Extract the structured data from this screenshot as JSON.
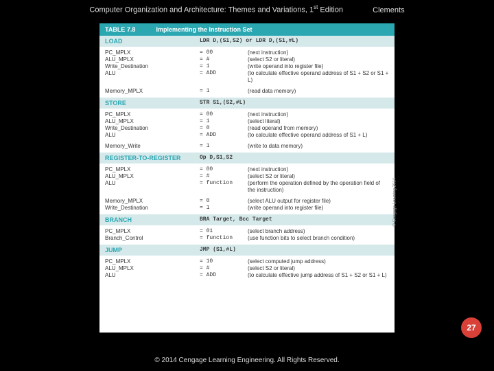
{
  "header": {
    "title_pre": "Computer Organization and Architecture: Themes and Variations, 1",
    "title_sup": "st",
    "title_post": " Edition",
    "author": "Clements"
  },
  "table": {
    "number": "TABLE 7.8",
    "caption": "Implementing the Instruction Set",
    "head_bg": "#2ba7b2",
    "sec_bg": "#d5e9eb",
    "sec_fg": "#2ba7b2"
  },
  "sections": [
    {
      "name": "LOAD",
      "mnemonic": "LDR D,(S1,S2) or LDR D,(S1,#L)",
      "rows": [
        {
          "sig": "PC_MPLX",
          "val": "= 00",
          "desc": "(next instruction)"
        },
        {
          "sig": "ALU_MPLX",
          "val": "= #",
          "desc": "(select S2 or literal)"
        },
        {
          "sig": "Write_Destination",
          "val": "= 1",
          "desc": "(write operand into register file)"
        },
        {
          "sig": "ALU",
          "val": "= ADD",
          "desc": "(to calculate effective operand address of S1 + S2 or S1 + L)"
        },
        {
          "sig": "",
          "val": "",
          "desc": ""
        },
        {
          "sig": "Memory_MPLX",
          "val": "= 1",
          "desc": "(read data memory)"
        }
      ]
    },
    {
      "name": "STORE",
      "mnemonic": "STR S1,(S2,#L)",
      "rows": [
        {
          "sig": "PC_MPLX",
          "val": "= 00",
          "desc": "(next instruction)"
        },
        {
          "sig": "ALU_MPLX",
          "val": "= 1",
          "desc": "(select literal)"
        },
        {
          "sig": "Write_Destination",
          "val": "= 0",
          "desc": "(read operand from memory)"
        },
        {
          "sig": "ALU",
          "val": "= ADD",
          "desc": "(to calculate effective operand address of S1 + L)"
        },
        {
          "sig": "",
          "val": "",
          "desc": ""
        },
        {
          "sig": "Memory_Write",
          "val": "= 1",
          "desc": "(write to data memory)"
        }
      ]
    },
    {
      "name": "REGISTER-TO-REGISTER",
      "mnemonic": "Op D,S1,S2",
      "rows": [
        {
          "sig": "PC_MPLX",
          "val": "= 00",
          "desc": "(next instruction)"
        },
        {
          "sig": "ALU_MPLX",
          "val": "= #",
          "desc": "(select S2 or literal)"
        },
        {
          "sig": "ALU",
          "val": "= function",
          "desc": "(perform the operation defined by the operation field of the instruction)"
        },
        {
          "sig": "",
          "val": "",
          "desc": ""
        },
        {
          "sig": "Memory_MPLX",
          "val": "= 0",
          "desc": "(select ALU output for register file)"
        },
        {
          "sig": "Write_Destination",
          "val": "= 1",
          "desc": "(write operand into register file)"
        }
      ]
    },
    {
      "name": "BRANCH",
      "mnemonic": "BRA Target, Bcc Target",
      "rows": [
        {
          "sig": "PC_MPLX",
          "val": "= 01",
          "desc": "(select branch address)"
        },
        {
          "sig": "Branch_Control",
          "val": "= function",
          "desc": "(use function bits to select branch condition)"
        }
      ]
    },
    {
      "name": "JUMP",
      "mnemonic": "JMP (S1,#L)",
      "rows": [
        {
          "sig": "PC_MPLX",
          "val": "= 10",
          "desc": "(select computed jump address)"
        },
        {
          "sig": "ALU_MPLX",
          "val": "= #",
          "desc": "(select S2 or literal)"
        },
        {
          "sig": "ALU",
          "val": "= ADD",
          "desc": "(to calculate effective jump address of S1 + S2 or S1 + L)"
        }
      ]
    }
  ],
  "side_copyright": "© Cengage Learning 2014",
  "page_number": "27",
  "footer": "© 2014 Cengage Learning Engineering. All Rights Reserved."
}
